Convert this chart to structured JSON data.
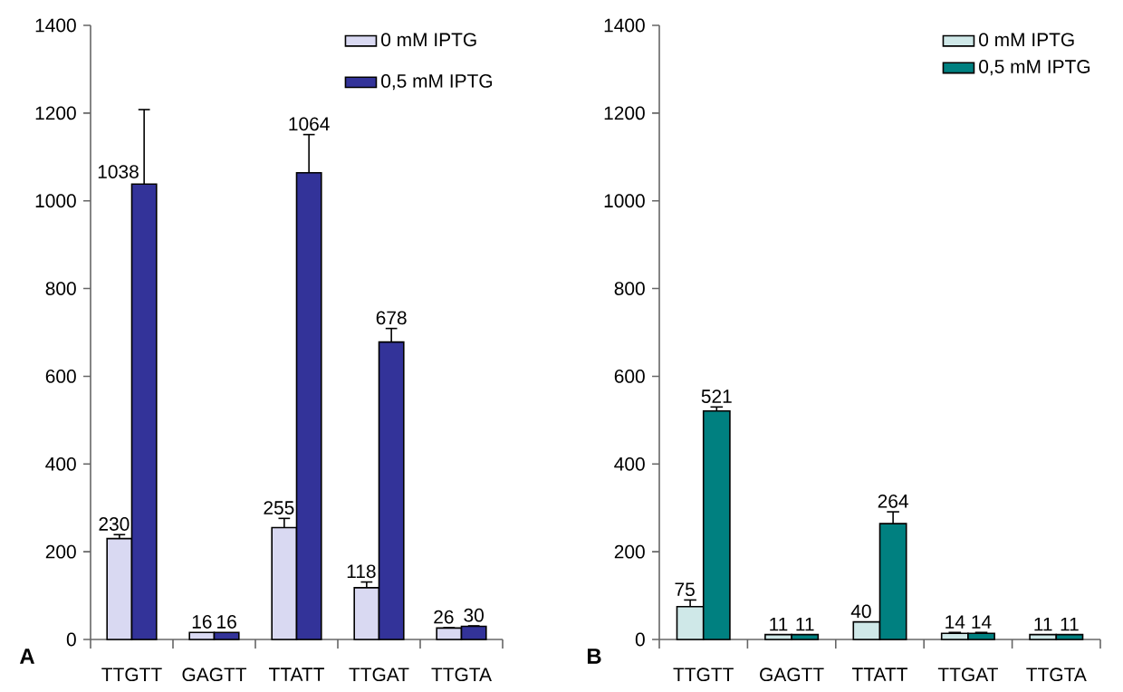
{
  "chart_data": [
    {
      "type": "bar",
      "categories": [
        "TTGTT",
        "GAGTT",
        "TTATT",
        "TTGAT",
        "TTGTA"
      ],
      "ylim": [
        0,
        1400
      ],
      "yticks": [
        0,
        200,
        400,
        600,
        800,
        1000,
        1200,
        1400
      ],
      "legend": "top right",
      "data_labels": true,
      "annotations": [
        "A"
      ],
      "series": [
        {
          "name": "0 mM IPTG",
          "color": "#d9d9f2",
          "values": [
            230,
            16,
            255,
            118,
            26
          ],
          "errors": [
            [
              230,
              239
            ],
            null,
            [
              255,
              276
            ],
            [
              118,
              131
            ],
            [
              26,
              27
            ]
          ]
        },
        {
          "name": "0,5 mM IPTG",
          "color": "#333399",
          "values": [
            1038,
            16,
            1064,
            678,
            30
          ],
          "errors": [
            [
              1038,
              1208
            ],
            null,
            [
              1064,
              1151
            ],
            [
              678,
              709
            ],
            [
              30,
              31
            ]
          ]
        }
      ]
    },
    {
      "type": "bar",
      "categories": [
        "TTGTT",
        "GAGTT",
        "TTATT",
        "TTGAT",
        "TTGTA"
      ],
      "ylim": [
        0,
        1400
      ],
      "yticks": [
        0,
        200,
        400,
        600,
        800,
        1000,
        1200,
        1400
      ],
      "legend": "top right",
      "data_labels": true,
      "annotations": [
        "B"
      ],
      "series": [
        {
          "name": "0 mM IPTG",
          "color": "#cfe8e8",
          "values": [
            75,
            11,
            40,
            14,
            11
          ],
          "errors": [
            [
              75,
              90
            ],
            null,
            null,
            [
              14,
              16
            ],
            null
          ]
        },
        {
          "name": "0,5 mM IPTG",
          "color": "#008080",
          "values": [
            521,
            11,
            264,
            14,
            11
          ],
          "errors": [
            [
              521,
              530
            ],
            null,
            [
              264,
              291
            ],
            [
              14,
              16
            ],
            null
          ]
        }
      ]
    }
  ]
}
